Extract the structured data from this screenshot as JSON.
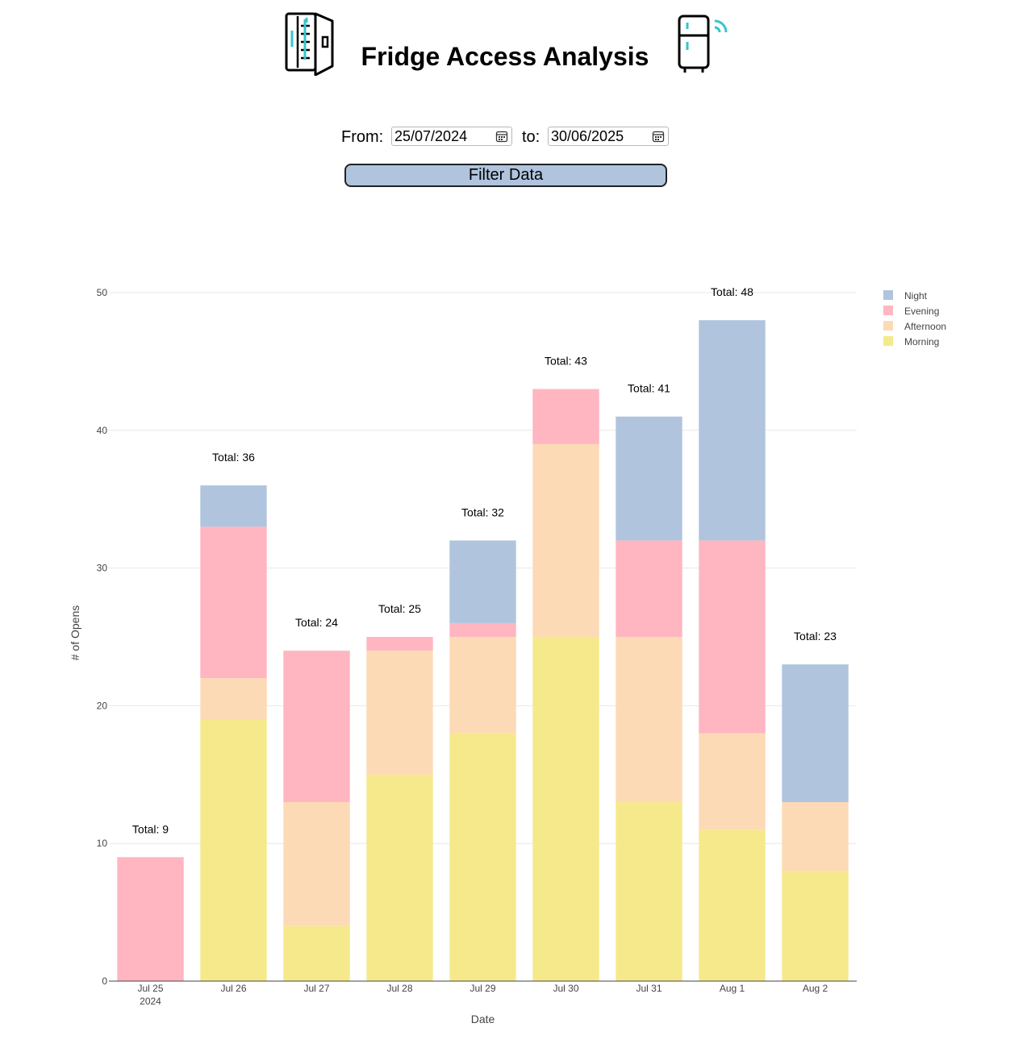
{
  "header": {
    "title": "Fridge Access Analysis",
    "left_icon": "fridge-open-icon",
    "right_icon": "smart-fridge-icon",
    "icon_accent": "#36c5cc"
  },
  "filters": {
    "from_label": "From:",
    "from_value": "25/07/2024",
    "to_label": "to:",
    "to_value": "30/06/2025",
    "button_label": "Filter Data"
  },
  "chart_data": {
    "type": "bar",
    "stacked": true,
    "categories": [
      "Jul 25",
      "Jul 26",
      "Jul 27",
      "Jul 28",
      "Jul 29",
      "Jul 30",
      "Jul 31",
      "Aug 1",
      "Aug 2"
    ],
    "category_sublabels": [
      "2024",
      "",
      "",
      "",
      "",
      "",
      "",
      "",
      ""
    ],
    "series": [
      {
        "name": "Morning",
        "color": "#f5e98c",
        "values": [
          0,
          19,
          4,
          15,
          18,
          25,
          13,
          11,
          8
        ]
      },
      {
        "name": "Afternoon",
        "color": "#fddab6",
        "values": [
          0,
          3,
          9,
          9,
          7,
          14,
          12,
          7,
          5
        ]
      },
      {
        "name": "Evening",
        "color": "#ffb6c1",
        "values": [
          9,
          11,
          11,
          1,
          1,
          4,
          7,
          14,
          0
        ]
      },
      {
        "name": "Night",
        "color": "#b0c4de",
        "values": [
          0,
          3,
          0,
          0,
          6,
          0,
          9,
          16,
          10
        ]
      }
    ],
    "totals": [
      9,
      36,
      24,
      25,
      32,
      43,
      41,
      48,
      23
    ],
    "total_prefix": "Total: ",
    "legend_order": [
      "Night",
      "Evening",
      "Afternoon",
      "Morning"
    ],
    "legend_position": "top-right",
    "xlabel": "Date",
    "ylabel": "# of Opens",
    "ylim": [
      0,
      50
    ],
    "yticks": [
      0,
      10,
      20,
      30,
      40,
      50
    ],
    "grid": true
  }
}
